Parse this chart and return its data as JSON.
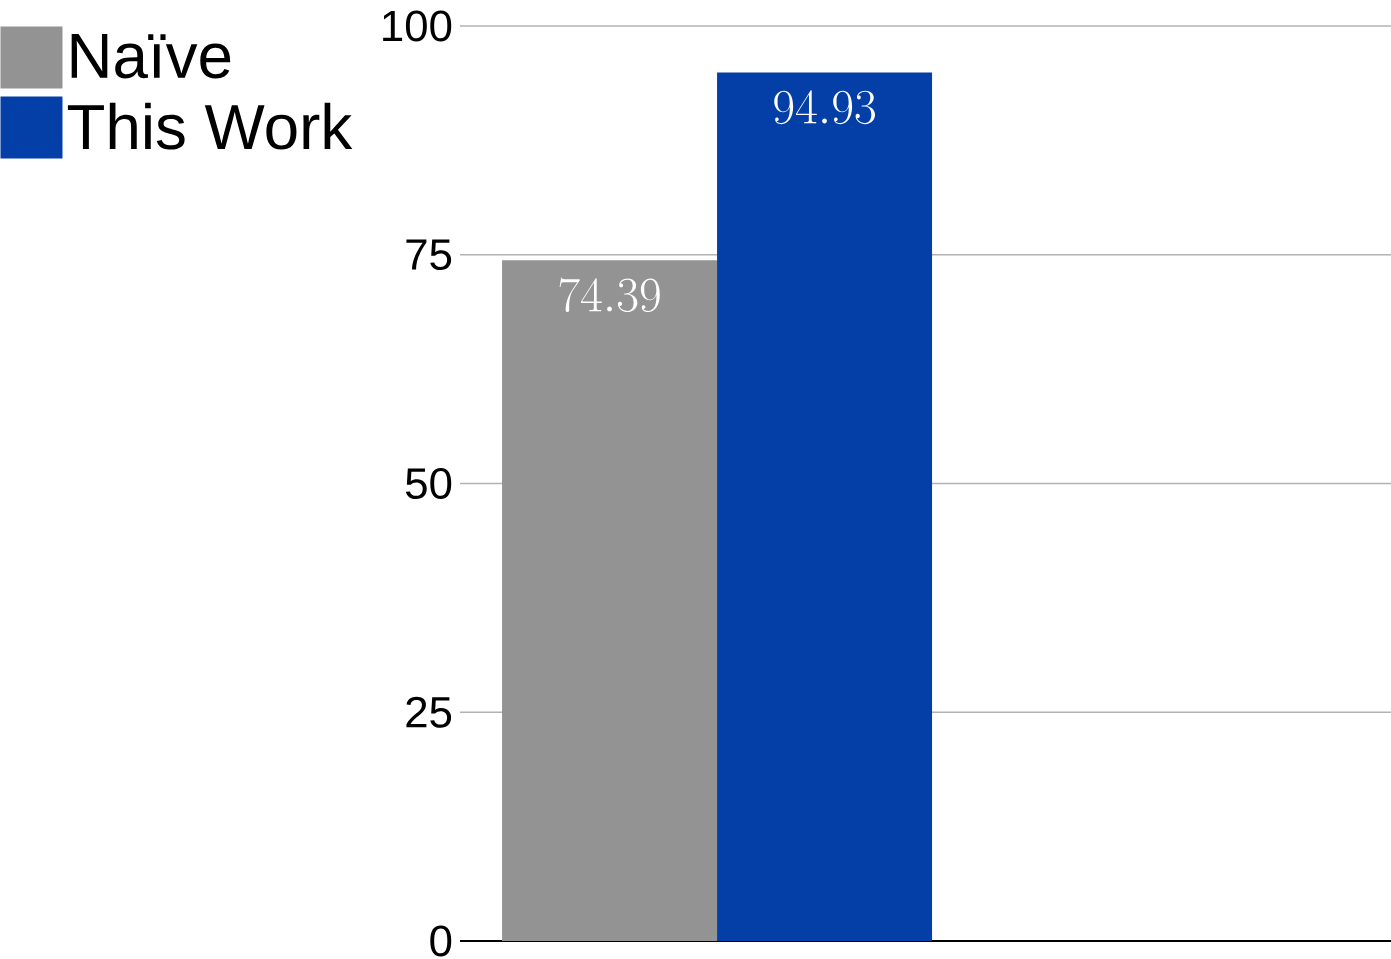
{
  "chart_data": {
    "type": "bar",
    "categories": [
      null
    ],
    "series": [
      {
        "name": "Naïve",
        "color": "#939393",
        "values": [
          74.39
        ]
      },
      {
        "name": "This Work",
        "color": "#043fa8",
        "values": [
          94.93
        ]
      }
    ],
    "ylim": [
      0,
      100
    ],
    "yticks": [
      0,
      25,
      50,
      75,
      100
    ],
    "grid": "y",
    "legend": "top left",
    "data_labels": true
  }
}
